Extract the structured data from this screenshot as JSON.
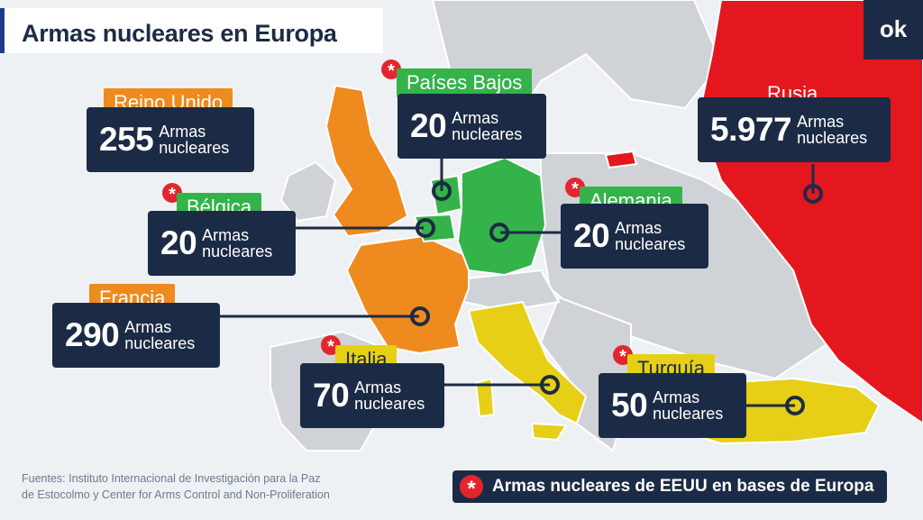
{
  "title": "Armas nucleares en Europa",
  "logo_text": "ok",
  "unit_line1": "Armas",
  "unit_line2": "nucleares",
  "colors": {
    "navy": "#1c2b45",
    "orange": "#ef8a1e",
    "green": "#34b34a",
    "yellow": "#e6cf16",
    "red": "#e3171d",
    "gray": "#cfd3d7",
    "sea": "#eef1f4",
    "us_star": "#e3262e"
  },
  "countries": [
    {
      "key": "reino-unido",
      "name": "Reino Unido",
      "count": "255",
      "us_bases": false,
      "color": "orange"
    },
    {
      "key": "paises-bajos",
      "name": "Países Bajos",
      "count": "20",
      "us_bases": true,
      "color": "green"
    },
    {
      "key": "belgica",
      "name": "Bélgica",
      "count": "20",
      "us_bases": true,
      "color": "green"
    },
    {
      "key": "alemania",
      "name": "Alemania",
      "count": "20",
      "us_bases": true,
      "color": "green"
    },
    {
      "key": "francia",
      "name": "Francia",
      "count": "290",
      "us_bases": false,
      "color": "orange"
    },
    {
      "key": "italia",
      "name": "Italia",
      "count": "70",
      "us_bases": true,
      "color": "yellow"
    },
    {
      "key": "turquia",
      "name": "Turquía",
      "count": "50",
      "us_bases": true,
      "color": "yellow"
    },
    {
      "key": "rusia",
      "name": "Rusia",
      "count": "5.977",
      "us_bases": false,
      "color": "red"
    }
  ],
  "sources": {
    "line1": "Fuentes: Instituto Internacional de Investigación para la Paz",
    "line2": "de Estocolmo y Center for Arms Control and Non-Proliferation"
  },
  "legend": {
    "icon": "asterisk-icon",
    "text": "Armas nucleares de EEUU en bases de Europa"
  }
}
